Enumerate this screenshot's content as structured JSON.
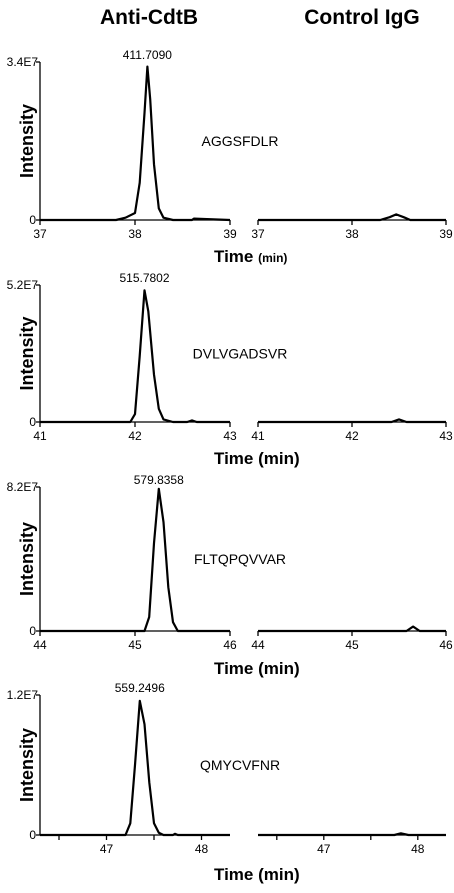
{
  "column_titles": [
    "Anti-CdtB",
    "Control IgG"
  ],
  "chart_data": [
    {
      "type": "line",
      "peptide": "AGGSFDLR",
      "mz_label": "411.7090",
      "ylabel": "Intensity",
      "xlabel": "Time",
      "xlabel_unit": "(min)",
      "xlim": [
        37,
        39
      ],
      "xticks": [
        37,
        38,
        39
      ],
      "xtick_labels": [
        "37",
        "38",
        "39"
      ],
      "ylim": [
        0,
        34000000
      ],
      "ytick_labels": [
        "0",
        "3.4E7"
      ],
      "series": [
        {
          "panel": "Anti-CdtB",
          "x": [
            37.0,
            37.8,
            37.9,
            38.0,
            38.05,
            38.1,
            38.13,
            38.16,
            38.2,
            38.25,
            38.3,
            38.4,
            38.6,
            38.62,
            39.0
          ],
          "y": [
            0,
            0,
            500000,
            1500000,
            8000000,
            23000000,
            33000000,
            26000000,
            12000000,
            2500000,
            500000,
            0,
            0,
            300000,
            0
          ]
        },
        {
          "panel": "Control IgG",
          "x": [
            37.0,
            38.3,
            38.4,
            38.47,
            38.55,
            38.62,
            39.0
          ],
          "y": [
            0,
            0,
            600000,
            1200000,
            600000,
            0,
            0
          ]
        }
      ]
    },
    {
      "type": "line",
      "peptide": "DVLVGADSVR",
      "mz_label": "515.7802",
      "ylabel": "Intensity",
      "xlabel": "Time",
      "xlabel_unit": "(min)",
      "xlim": [
        41,
        43
      ],
      "xticks": [
        41,
        42,
        43
      ],
      "xtick_labels": [
        "41",
        "42",
        "43"
      ],
      "ylim": [
        0,
        52000000
      ],
      "ytick_labels": [
        "0",
        "5.2E7"
      ],
      "series": [
        {
          "panel": "Anti-CdtB",
          "x": [
            41.0,
            41.95,
            42.0,
            42.05,
            42.1,
            42.14,
            42.2,
            42.25,
            42.3,
            42.4,
            42.55,
            42.6,
            42.65,
            43.0
          ],
          "y": [
            0,
            0,
            3000000,
            25000000,
            50000000,
            42000000,
            18000000,
            5000000,
            1000000,
            0,
            0,
            600000,
            0,
            0
          ]
        },
        {
          "panel": "Control IgG",
          "x": [
            41.0,
            42.42,
            42.5,
            42.58,
            43.0
          ],
          "y": [
            0,
            0,
            1000000,
            0,
            0
          ]
        }
      ]
    },
    {
      "type": "line",
      "peptide": "FLTQPQVVAR",
      "mz_label": "579.8358",
      "ylabel": "Intensity",
      "xlabel": "Time",
      "xlabel_unit": "(min)",
      "xlim": [
        44,
        46
      ],
      "xticks": [
        44,
        45,
        46
      ],
      "xtick_labels": [
        "44",
        "45",
        "46"
      ],
      "ylim": [
        0,
        82000000
      ],
      "ytick_labels": [
        "0",
        "8.2E7"
      ],
      "series": [
        {
          "panel": "Anti-CdtB",
          "x": [
            44.0,
            45.1,
            45.15,
            45.2,
            45.25,
            45.3,
            45.35,
            45.4,
            45.45,
            45.5,
            46.0
          ],
          "y": [
            0,
            0,
            8000000,
            50000000,
            81000000,
            62000000,
            25000000,
            5000000,
            0,
            0,
            0
          ]
        },
        {
          "panel": "Control IgG",
          "x": [
            44.0,
            45.58,
            45.65,
            45.72,
            46.0
          ],
          "y": [
            0,
            0,
            2500000,
            0,
            0
          ]
        }
      ]
    },
    {
      "type": "line",
      "peptide": "QMYCVFNR",
      "mz_label": "559.2496",
      "ylabel": "Intensity",
      "xlabel": "Time",
      "xlabel_unit": "(min)",
      "xlim": [
        46.3,
        48.3
      ],
      "xticks": [
        46.5,
        47,
        47.5,
        48
      ],
      "xtick_labels": [
        "",
        "47",
        "",
        "48"
      ],
      "ylim": [
        0,
        12000000
      ],
      "ytick_labels": [
        "0",
        "1.2E7"
      ],
      "series": [
        {
          "panel": "Anti-CdtB",
          "x": [
            46.3,
            47.2,
            47.25,
            47.3,
            47.35,
            47.4,
            47.45,
            47.5,
            47.55,
            47.6,
            47.7,
            47.72,
            47.75,
            48.3
          ],
          "y": [
            0,
            0,
            1000000,
            6000000,
            11500000,
            9500000,
            4500000,
            1000000,
            200000,
            0,
            0,
            100000,
            0,
            0
          ]
        },
        {
          "panel": "Control IgG",
          "x": [
            46.3,
            47.75,
            47.82,
            47.9,
            48.3
          ],
          "y": [
            0,
            0,
            150000,
            0,
            0
          ]
        }
      ]
    }
  ]
}
